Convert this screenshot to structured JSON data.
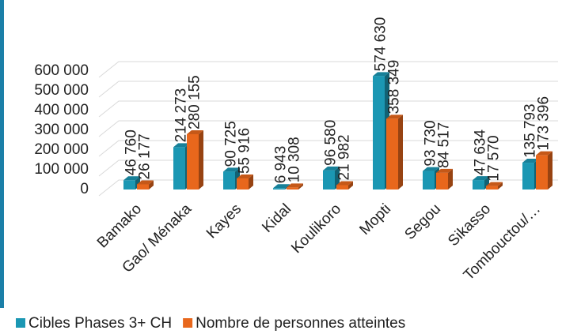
{
  "chart_data": {
    "type": "bar",
    "categories": [
      "Bamako",
      "Gao/ Ménaka",
      "Kayes",
      "Kidal",
      "Koulikoro",
      "Mopti",
      "Segou",
      "Sikasso",
      "Tombouctou/…"
    ],
    "series": [
      {
        "name": "Cibles Phases 3+ CH",
        "color": "#1b97b3",
        "values": [
          46760,
          214273,
          90725,
          6943,
          96580,
          574630,
          93730,
          47634,
          135793
        ],
        "value_labels": [
          "46 760",
          "214 273",
          "90 725",
          "6 943",
          "96 580",
          "574 630",
          "93 730",
          "47 634",
          "135 793"
        ]
      },
      {
        "name": "Nombre de personnes atteintes",
        "color": "#e8671c",
        "values": [
          26177,
          280155,
          55916,
          10308,
          21982,
          358349,
          84517,
          17570,
          173396
        ],
        "value_labels": [
          "26 177",
          "280 155",
          "55 916",
          "10 308",
          "21 982",
          "358 349",
          "84 517",
          "17 570",
          "173 396"
        ]
      }
    ],
    "ylim": [
      0,
      600000
    ],
    "yticks": [
      {
        "value": 0,
        "label": "0"
      },
      {
        "value": 100000,
        "label": "100 000"
      },
      {
        "value": 200000,
        "label": "200 000"
      },
      {
        "value": 300000,
        "label": "300 000"
      },
      {
        "value": 400000,
        "label": "400 000"
      },
      {
        "value": 500000,
        "label": "500 000"
      },
      {
        "value": 600000,
        "label": "600 000"
      }
    ],
    "grid": true,
    "legend": "bottom"
  }
}
